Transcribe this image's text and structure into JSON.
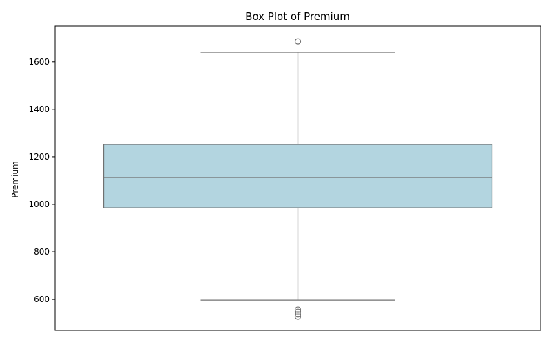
{
  "chart_data": {
    "type": "box",
    "title": "Box Plot of Premium",
    "xlabel": "",
    "ylabel": "Premium",
    "ylim": [
      470,
      1750
    ],
    "yticks": [
      600,
      800,
      1000,
      1200,
      1400,
      1600
    ],
    "grid": false,
    "series": [
      {
        "whisker_low": 597,
        "q1": 985,
        "median": 1113,
        "q3": 1252,
        "whisker_high": 1640,
        "outliers": [
          1686,
          557,
          548,
          537,
          528
        ]
      }
    ],
    "colors": {
      "box_fill": "#b3d5e0",
      "line": "#707070",
      "axis": "#000000"
    }
  }
}
